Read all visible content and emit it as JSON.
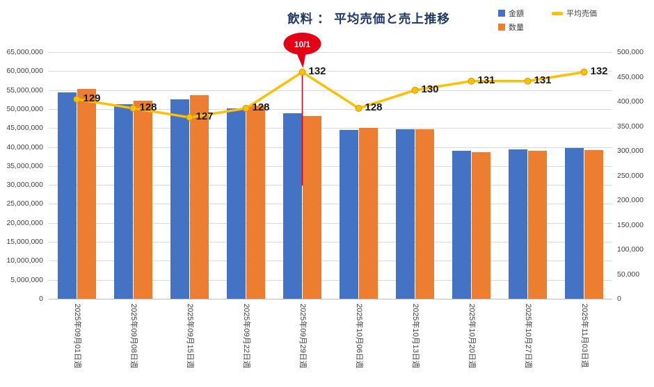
{
  "title": "飲料 ： 平均売価と売上推移",
  "legend": {
    "amount": "金額",
    "quantity": "数量",
    "avg_price": "平均売価"
  },
  "annotation": {
    "label": "10/1",
    "week": "2025年09月29日週",
    "color": "#e30016"
  },
  "chart_data": {
    "type": "combo",
    "title": "飲料 ： 平均売価と売上推移",
    "categories": [
      "2025年09月01日週",
      "2025年09月08日週",
      "2025年09月15日週",
      "2025年09月22日週",
      "2025年09月29日週",
      "2025年10月06日週",
      "2025年10月13日週",
      "2025年10月20日週",
      "2025年10月27日週",
      "2025年11月03日週"
    ],
    "series": [
      {
        "key": "amount",
        "name": "金額",
        "type": "bar",
        "axis": "left",
        "color": "#4472c4",
        "values": [
          54400000,
          51200000,
          52500000,
          50100000,
          48900000,
          44500000,
          44700000,
          39000000,
          39400000,
          39700000
        ]
      },
      {
        "key": "quantity",
        "name": "数量",
        "type": "bar",
        "axis": "right",
        "color": "#ed7d31",
        "values": [
          425000,
          401000,
          412000,
          391000,
          370000,
          346000,
          343000,
          297000,
          300000,
          301000
        ]
      },
      {
        "key": "avg_price",
        "name": "平均売価",
        "type": "line",
        "axis": "overlay",
        "color": "#ffc000",
        "values": [
          129,
          128,
          127,
          128,
          132,
          128,
          130,
          131,
          131,
          132
        ]
      }
    ],
    "left_axis": {
      "min": 0,
      "max": 65000000,
      "step": 5000000
    },
    "right_axis": {
      "min": 0,
      "max": 500000,
      "step": 50000
    },
    "line_axis": {
      "min": 107,
      "max": 134.2
    },
    "grid": "horizontal",
    "legend_position": "top-right"
  }
}
